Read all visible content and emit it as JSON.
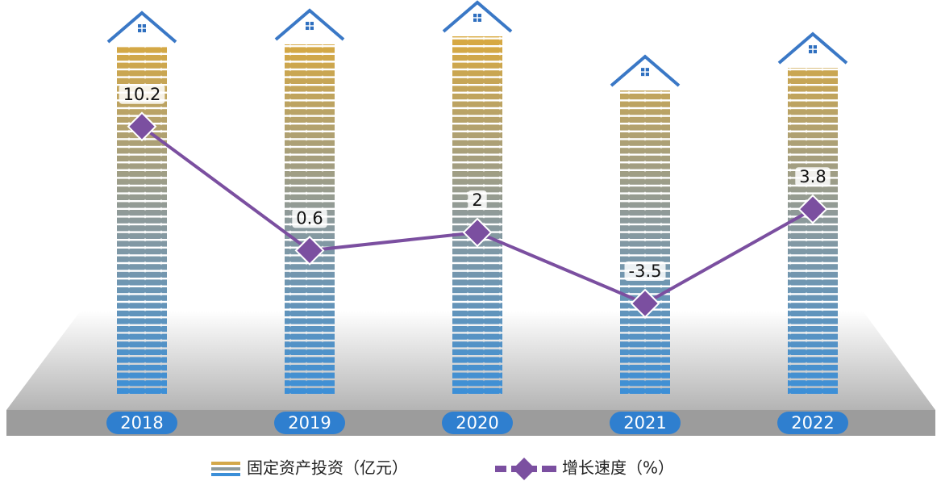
{
  "chart_data": {
    "type": "bar",
    "categories": [
      "2018",
      "2019",
      "2020",
      "2021",
      "2022"
    ],
    "series": [
      {
        "name": "固定资产投资（亿元）",
        "type": "bar",
        "color": "#d4a84a",
        "values": [
          430,
          433,
          443,
          376,
          404
        ]
      },
      {
        "name": "增长速度（%）",
        "type": "line",
        "color": "#7b4fa0",
        "values": [
          10.2,
          0.6,
          2.0,
          -3.5,
          3.8
        ]
      }
    ]
  }
}
